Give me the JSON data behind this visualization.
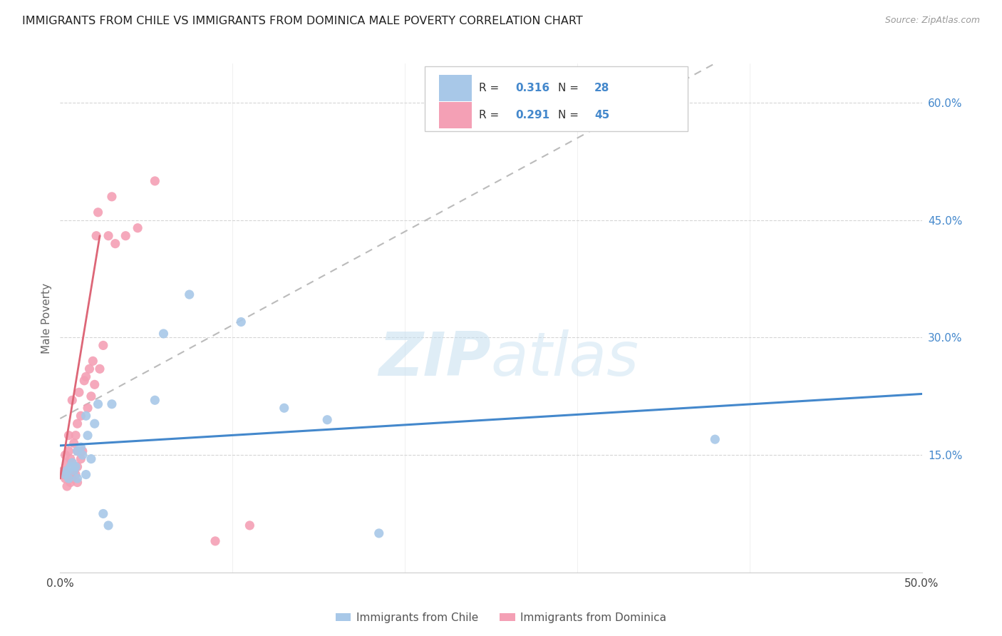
{
  "title": "IMMIGRANTS FROM CHILE VS IMMIGRANTS FROM DOMINICA MALE POVERTY CORRELATION CHART",
  "source": "Source: ZipAtlas.com",
  "ylabel": "Male Poverty",
  "xlim": [
    0.0,
    0.5
  ],
  "ylim": [
    0.0,
    0.65
  ],
  "xtick_positions": [
    0.0,
    0.1,
    0.2,
    0.3,
    0.4,
    0.5
  ],
  "xtick_labels": [
    "0.0%",
    "",
    "",
    "",
    "",
    "50.0%"
  ],
  "ytick_positions": [
    0.0,
    0.15,
    0.3,
    0.45,
    0.6
  ],
  "ytick_labels": [
    "",
    "15.0%",
    "30.0%",
    "45.0%",
    "60.0%"
  ],
  "legend1_label": "Immigrants from Chile",
  "legend2_label": "Immigrants from Dominica",
  "R_chile": "0.316",
  "N_chile": "28",
  "R_dominica": "0.291",
  "N_dominica": "45",
  "chile_color": "#a8c8e8",
  "dominica_color": "#f4a0b5",
  "chile_line_color": "#4488cc",
  "dominica_line_color": "#dd6677",
  "grid_color": "#d5d5d5",
  "watermark_zip": "ZIP",
  "watermark_atlas": "atlas",
  "chile_scatter_x": [
    0.003,
    0.004,
    0.005,
    0.006,
    0.007,
    0.008,
    0.009,
    0.01,
    0.01,
    0.012,
    0.013,
    0.015,
    0.015,
    0.016,
    0.018,
    0.02,
    0.022,
    0.025,
    0.028,
    0.03,
    0.055,
    0.06,
    0.075,
    0.105,
    0.13,
    0.155,
    0.185,
    0.38
  ],
  "chile_scatter_y": [
    0.125,
    0.13,
    0.12,
    0.135,
    0.14,
    0.13,
    0.135,
    0.12,
    0.155,
    0.16,
    0.15,
    0.125,
    0.2,
    0.175,
    0.145,
    0.19,
    0.215,
    0.075,
    0.06,
    0.215,
    0.22,
    0.305,
    0.355,
    0.32,
    0.21,
    0.195,
    0.05,
    0.17
  ],
  "dominica_scatter_x": [
    0.001,
    0.002,
    0.003,
    0.003,
    0.004,
    0.004,
    0.005,
    0.005,
    0.005,
    0.006,
    0.006,
    0.007,
    0.007,
    0.007,
    0.008,
    0.008,
    0.009,
    0.009,
    0.01,
    0.01,
    0.01,
    0.01,
    0.011,
    0.012,
    0.012,
    0.013,
    0.014,
    0.015,
    0.016,
    0.017,
    0.018,
    0.019,
    0.02,
    0.021,
    0.022,
    0.023,
    0.025,
    0.028,
    0.03,
    0.032,
    0.038,
    0.045,
    0.055,
    0.09,
    0.11
  ],
  "dominica_scatter_y": [
    0.125,
    0.13,
    0.12,
    0.15,
    0.11,
    0.14,
    0.125,
    0.155,
    0.175,
    0.115,
    0.145,
    0.12,
    0.14,
    0.22,
    0.13,
    0.165,
    0.125,
    0.175,
    0.115,
    0.135,
    0.155,
    0.19,
    0.23,
    0.145,
    0.2,
    0.155,
    0.245,
    0.25,
    0.21,
    0.26,
    0.225,
    0.27,
    0.24,
    0.43,
    0.46,
    0.26,
    0.29,
    0.43,
    0.48,
    0.42,
    0.43,
    0.44,
    0.5,
    0.04,
    0.06
  ],
  "chile_line_x": [
    0.0,
    0.5
  ],
  "chile_line_y": [
    0.125,
    0.285
  ],
  "dominica_line_x": [
    0.0,
    0.023
  ],
  "dominica_line_y": [
    0.12,
    0.43
  ]
}
